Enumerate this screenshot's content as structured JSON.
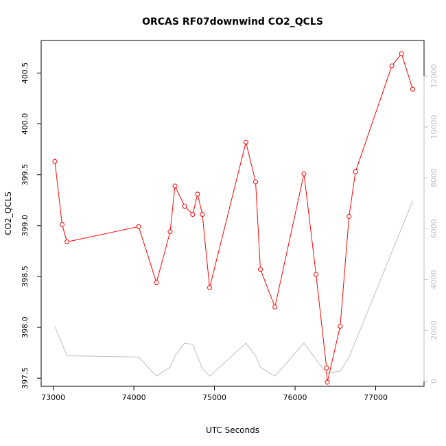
{
  "chart_data": {
    "type": "line",
    "title": "ORCAS RF07downwind CO2_QCLS",
    "xlabel": "UTC Seconds",
    "ylabel": "CO2_QCLS",
    "xlim": [
      72850,
      77600
    ],
    "ylim": [
      397.42,
      400.82
    ],
    "y2lim": [
      -200,
      13400
    ],
    "x_ticks": [
      73000,
      74000,
      75000,
      76000,
      77000
    ],
    "y_ticks": [
      397.5,
      398.0,
      398.5,
      399.0,
      399.5,
      400.0,
      400.5
    ],
    "y_tick_labels": [
      "397.5",
      "398.0",
      "398.5",
      "399.0",
      "399.5",
      "400.0",
      "400.5"
    ],
    "y2_ticks": [
      0,
      2000,
      4000,
      6000,
      8000,
      10000,
      12000
    ],
    "grid": false,
    "series": [
      {
        "axis": "left",
        "color": "#ff0000",
        "marker": "open-circle",
        "x": [
          73020,
          73110,
          73170,
          74060,
          74280,
          74450,
          74510,
          74630,
          74730,
          74790,
          74850,
          74940,
          75390,
          75510,
          75570,
          75750,
          76110,
          76260,
          76390,
          76400,
          76560,
          76670,
          76750,
          77200,
          77320,
          77460
        ],
        "values": [
          399.63,
          399.01,
          398.84,
          398.99,
          398.44,
          398.94,
          399.39,
          399.19,
          399.11,
          399.31,
          399.11,
          398.39,
          399.82,
          399.43,
          398.57,
          398.2,
          399.51,
          398.52,
          397.6,
          397.46,
          398.01,
          399.09,
          399.53,
          400.57,
          400.69,
          400.34
        ]
      },
      {
        "axis": "right",
        "color": "#bebebe",
        "marker": "none",
        "x": [
          73020,
          73170,
          74060,
          74280,
          74450,
          74510,
          74630,
          74730,
          74850,
          74940,
          75390,
          75510,
          75570,
          75750,
          76110,
          76390,
          76560,
          76670,
          77460
        ],
        "values": [
          2150,
          1000,
          950,
          200,
          550,
          1000,
          1500,
          1450,
          500,
          200,
          1500,
          1000,
          550,
          200,
          1500,
          300,
          400,
          950,
          7100
        ]
      }
    ]
  }
}
